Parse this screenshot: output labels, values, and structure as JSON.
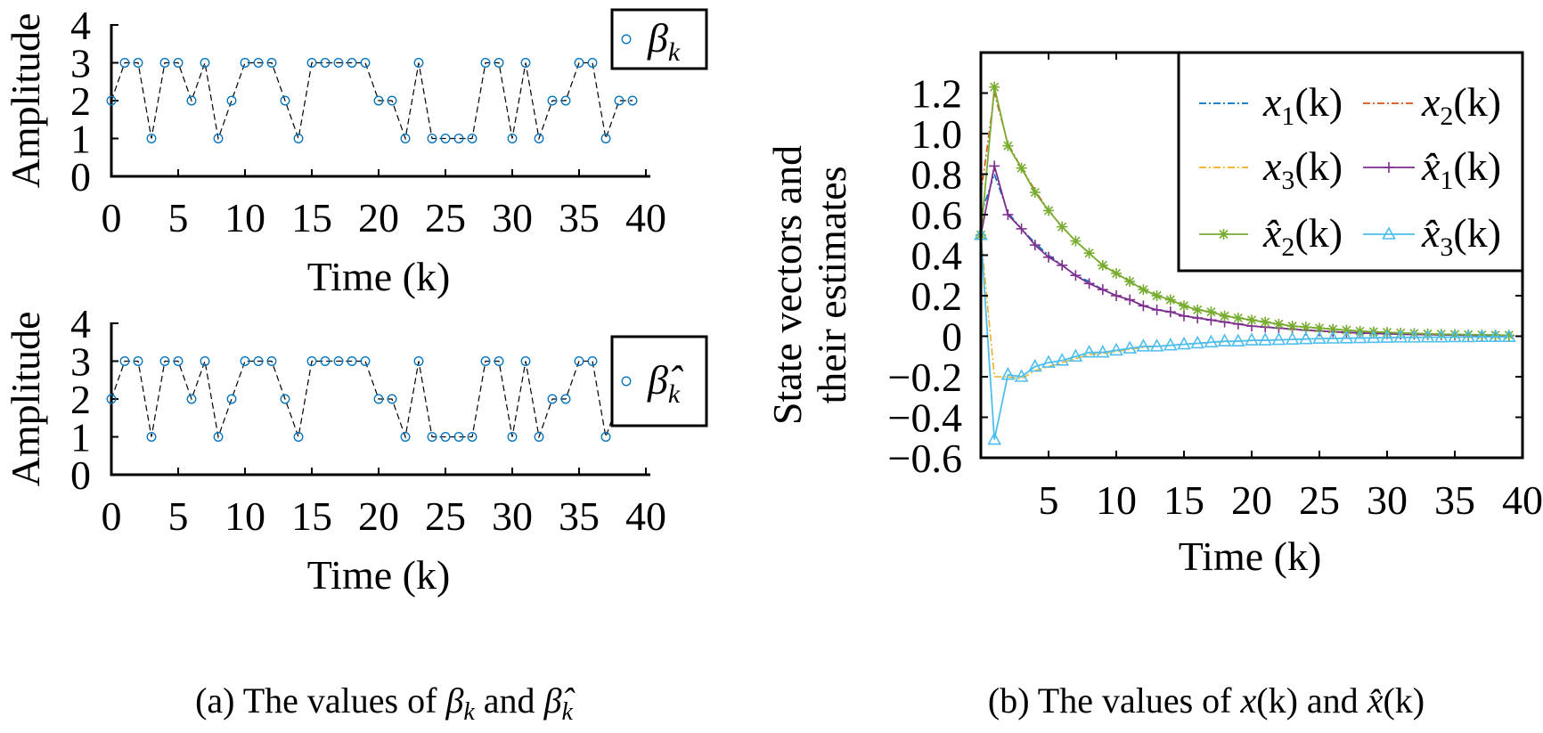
{
  "captions": {
    "a": {
      "prefix": "(a) The values of ",
      "sym1": "β",
      "sub1": "k",
      "mid": " and ",
      "sym2": "β̂",
      "sub2": "k"
    },
    "b": {
      "prefix": "(b) The values of ",
      "sym1": "x",
      "arg1": "(k)",
      "mid": " and ",
      "sym2": "x̂",
      "arg2": "(k)"
    }
  },
  "chart_data": [
    {
      "type": "line",
      "panel": "a-top",
      "title": "",
      "xlabel": "Time (k)",
      "ylabel": "Amplitude",
      "xlim": [
        0,
        40
      ],
      "ylim": [
        0,
        4
      ],
      "xticks": [
        "0",
        "5",
        "10",
        "15",
        "20",
        "25",
        "30",
        "35",
        "40"
      ],
      "yticks": [
        "0",
        "1",
        "2",
        "3",
        "4"
      ],
      "grid": false,
      "legend_position": "top-right",
      "x": [
        0,
        1,
        2,
        3,
        4,
        5,
        6,
        7,
        8,
        9,
        10,
        11,
        12,
        13,
        14,
        15,
        16,
        17,
        18,
        19,
        20,
        21,
        22,
        23,
        24,
        25,
        26,
        27,
        28,
        29,
        30,
        31,
        32,
        33,
        34,
        35,
        36,
        37,
        38,
        39
      ],
      "series": [
        {
          "name": {
            "symbol": "β",
            "subscript": "k"
          },
          "color": "#0072BD",
          "marker": "circle",
          "line": "dashed-black",
          "values": [
            2,
            3,
            3,
            1,
            3,
            3,
            2,
            3,
            1,
            2,
            3,
            3,
            3,
            2,
            1,
            3,
            3,
            3,
            3,
            3,
            2,
            2,
            1,
            3,
            1,
            1,
            1,
            1,
            3,
            3,
            1,
            3,
            1,
            2,
            2,
            3,
            3,
            1,
            2,
            2
          ]
        }
      ]
    },
    {
      "type": "line",
      "panel": "a-bottom",
      "title": "",
      "xlabel": "Time (k)",
      "ylabel": "Amplitude",
      "xlim": [
        0,
        40
      ],
      "ylim": [
        0,
        4
      ],
      "xticks": [
        "0",
        "5",
        "10",
        "15",
        "20",
        "25",
        "30",
        "35",
        "40"
      ],
      "yticks": [
        "0",
        "1",
        "2",
        "3",
        "4"
      ],
      "grid": false,
      "legend_position": "top-right",
      "x": [
        0,
        1,
        2,
        3,
        4,
        5,
        6,
        7,
        8,
        9,
        10,
        11,
        12,
        13,
        14,
        15,
        16,
        17,
        18,
        19,
        20,
        21,
        22,
        23,
        24,
        25,
        26,
        27,
        28,
        29,
        30,
        31,
        32,
        33,
        34,
        35,
        36,
        37,
        38,
        39
      ],
      "series": [
        {
          "name": {
            "symbol": "β̂",
            "subscript": "k"
          },
          "color": "#0072BD",
          "marker": "circle",
          "line": "dashed-black",
          "values": [
            2,
            3,
            3,
            1,
            3,
            3,
            2,
            3,
            1,
            2,
            3,
            3,
            3,
            2,
            1,
            3,
            3,
            3,
            3,
            3,
            2,
            2,
            1,
            3,
            1,
            1,
            1,
            1,
            3,
            3,
            1,
            3,
            1,
            2,
            2,
            3,
            3,
            1,
            2,
            2
          ]
        }
      ]
    },
    {
      "type": "line",
      "panel": "b",
      "title": "",
      "xlabel": "Time (k)",
      "ylabel": [
        "State vectors and",
        "their estimates"
      ],
      "xlim": [
        0,
        40
      ],
      "ylim": [
        -0.6,
        1.4
      ],
      "xticks": [
        "5",
        "10",
        "15",
        "20",
        "25",
        "30",
        "35",
        "40"
      ],
      "yticks": [
        "1.2",
        "1.0",
        "0.8",
        "0.6",
        "0.4",
        "0.2",
        "0",
        "−0.2",
        "−0.4",
        "−0.6"
      ],
      "grid": false,
      "legend_position": "top-right",
      "x": [
        0,
        1,
        2,
        3,
        4,
        5,
        6,
        7,
        8,
        9,
        10,
        11,
        12,
        13,
        14,
        15,
        16,
        17,
        18,
        19,
        20,
        21,
        22,
        23,
        24,
        25,
        26,
        27,
        28,
        29,
        30,
        31,
        32,
        33,
        34,
        35,
        36,
        37,
        38,
        39
      ],
      "series": [
        {
          "name": {
            "symbol": "x",
            "subscript": "1",
            "arg": "(k)"
          },
          "color": "#0072BD",
          "marker": "none",
          "line": "dash-dot",
          "values": [
            0.6,
            0.8,
            0.61,
            0.53,
            0.46,
            0.4,
            0.35,
            0.3,
            0.27,
            0.23,
            0.2,
            0.18,
            0.15,
            0.13,
            0.12,
            0.1,
            0.09,
            0.08,
            0.07,
            0.06,
            0.05,
            0.045,
            0.04,
            0.035,
            0.03,
            0.026,
            0.022,
            0.019,
            0.016,
            0.014,
            0.012,
            0.01,
            0.009,
            0.008,
            0.007,
            0.006,
            0.005,
            0.004,
            0.004,
            0.003
          ]
        },
        {
          "name": {
            "symbol": "x",
            "subscript": "2",
            "arg": "(k)"
          },
          "color": "#D95319",
          "marker": "none",
          "line": "dash-dot",
          "values": [
            0.7,
            1.2,
            0.95,
            0.83,
            0.72,
            0.62,
            0.54,
            0.47,
            0.41,
            0.35,
            0.31,
            0.27,
            0.23,
            0.2,
            0.18,
            0.15,
            0.13,
            0.12,
            0.1,
            0.09,
            0.08,
            0.07,
            0.06,
            0.05,
            0.045,
            0.04,
            0.035,
            0.03,
            0.025,
            0.022,
            0.019,
            0.016,
            0.014,
            0.012,
            0.01,
            0.009,
            0.008,
            0.007,
            0.006,
            0.005
          ]
        },
        {
          "name": {
            "symbol": "x",
            "subscript": "3",
            "arg": "(k)"
          },
          "color": "#EDB120",
          "marker": "none",
          "line": "dash-dot",
          "values": [
            0.5,
            -0.2,
            -0.2,
            -0.21,
            -0.17,
            -0.15,
            -0.13,
            -0.11,
            -0.09,
            -0.085,
            -0.075,
            -0.065,
            -0.055,
            -0.05,
            -0.045,
            -0.04,
            -0.035,
            -0.03,
            -0.027,
            -0.025,
            -0.022,
            -0.02,
            -0.018,
            -0.016,
            -0.014,
            -0.012,
            -0.011,
            -0.01,
            -0.009,
            -0.008,
            -0.007,
            -0.006,
            -0.006,
            -0.005,
            -0.005,
            -0.004,
            -0.004,
            -0.003,
            -0.003,
            -0.003
          ]
        },
        {
          "name": {
            "symbol": "x̂",
            "subscript": "1",
            "arg": "(k)"
          },
          "color": "#7E2F8E",
          "marker": "plus",
          "line": "solid",
          "values": [
            0.5,
            0.84,
            0.6,
            0.53,
            0.45,
            0.39,
            0.35,
            0.3,
            0.26,
            0.23,
            0.2,
            0.18,
            0.15,
            0.13,
            0.12,
            0.1,
            0.09,
            0.08,
            0.07,
            0.06,
            0.05,
            0.045,
            0.04,
            0.035,
            0.03,
            0.026,
            0.022,
            0.019,
            0.016,
            0.014,
            0.012,
            0.01,
            0.009,
            0.008,
            0.007,
            0.006,
            0.005,
            0.004,
            0.004,
            0.003
          ]
        },
        {
          "name": {
            "symbol": "x̂",
            "subscript": "2",
            "arg": "(k)"
          },
          "color": "#77AC30",
          "marker": "asterisk",
          "line": "solid",
          "values": [
            0.5,
            1.23,
            0.94,
            0.83,
            0.71,
            0.62,
            0.54,
            0.47,
            0.41,
            0.35,
            0.31,
            0.27,
            0.23,
            0.2,
            0.18,
            0.15,
            0.13,
            0.12,
            0.1,
            0.09,
            0.08,
            0.07,
            0.06,
            0.05,
            0.045,
            0.04,
            0.035,
            0.03,
            0.025,
            0.022,
            0.019,
            0.016,
            0.014,
            0.012,
            0.01,
            0.009,
            0.008,
            0.007,
            0.006,
            0.005
          ]
        },
        {
          "name": {
            "symbol": "x̂",
            "subscript": "3",
            "arg": "(k)"
          },
          "color": "#4DBEEE",
          "marker": "triangle",
          "line": "solid",
          "values": [
            0.5,
            -0.51,
            -0.19,
            -0.2,
            -0.15,
            -0.13,
            -0.12,
            -0.1,
            -0.08,
            -0.08,
            -0.07,
            -0.06,
            -0.05,
            -0.05,
            -0.045,
            -0.04,
            -0.035,
            -0.03,
            -0.025,
            -0.025,
            -0.02,
            -0.02,
            -0.018,
            -0.016,
            -0.014,
            -0.012,
            -0.011,
            -0.01,
            -0.009,
            -0.008,
            -0.007,
            -0.006,
            -0.006,
            -0.005,
            -0.005,
            -0.004,
            -0.004,
            -0.003,
            -0.003,
            -0.003
          ]
        }
      ]
    }
  ]
}
